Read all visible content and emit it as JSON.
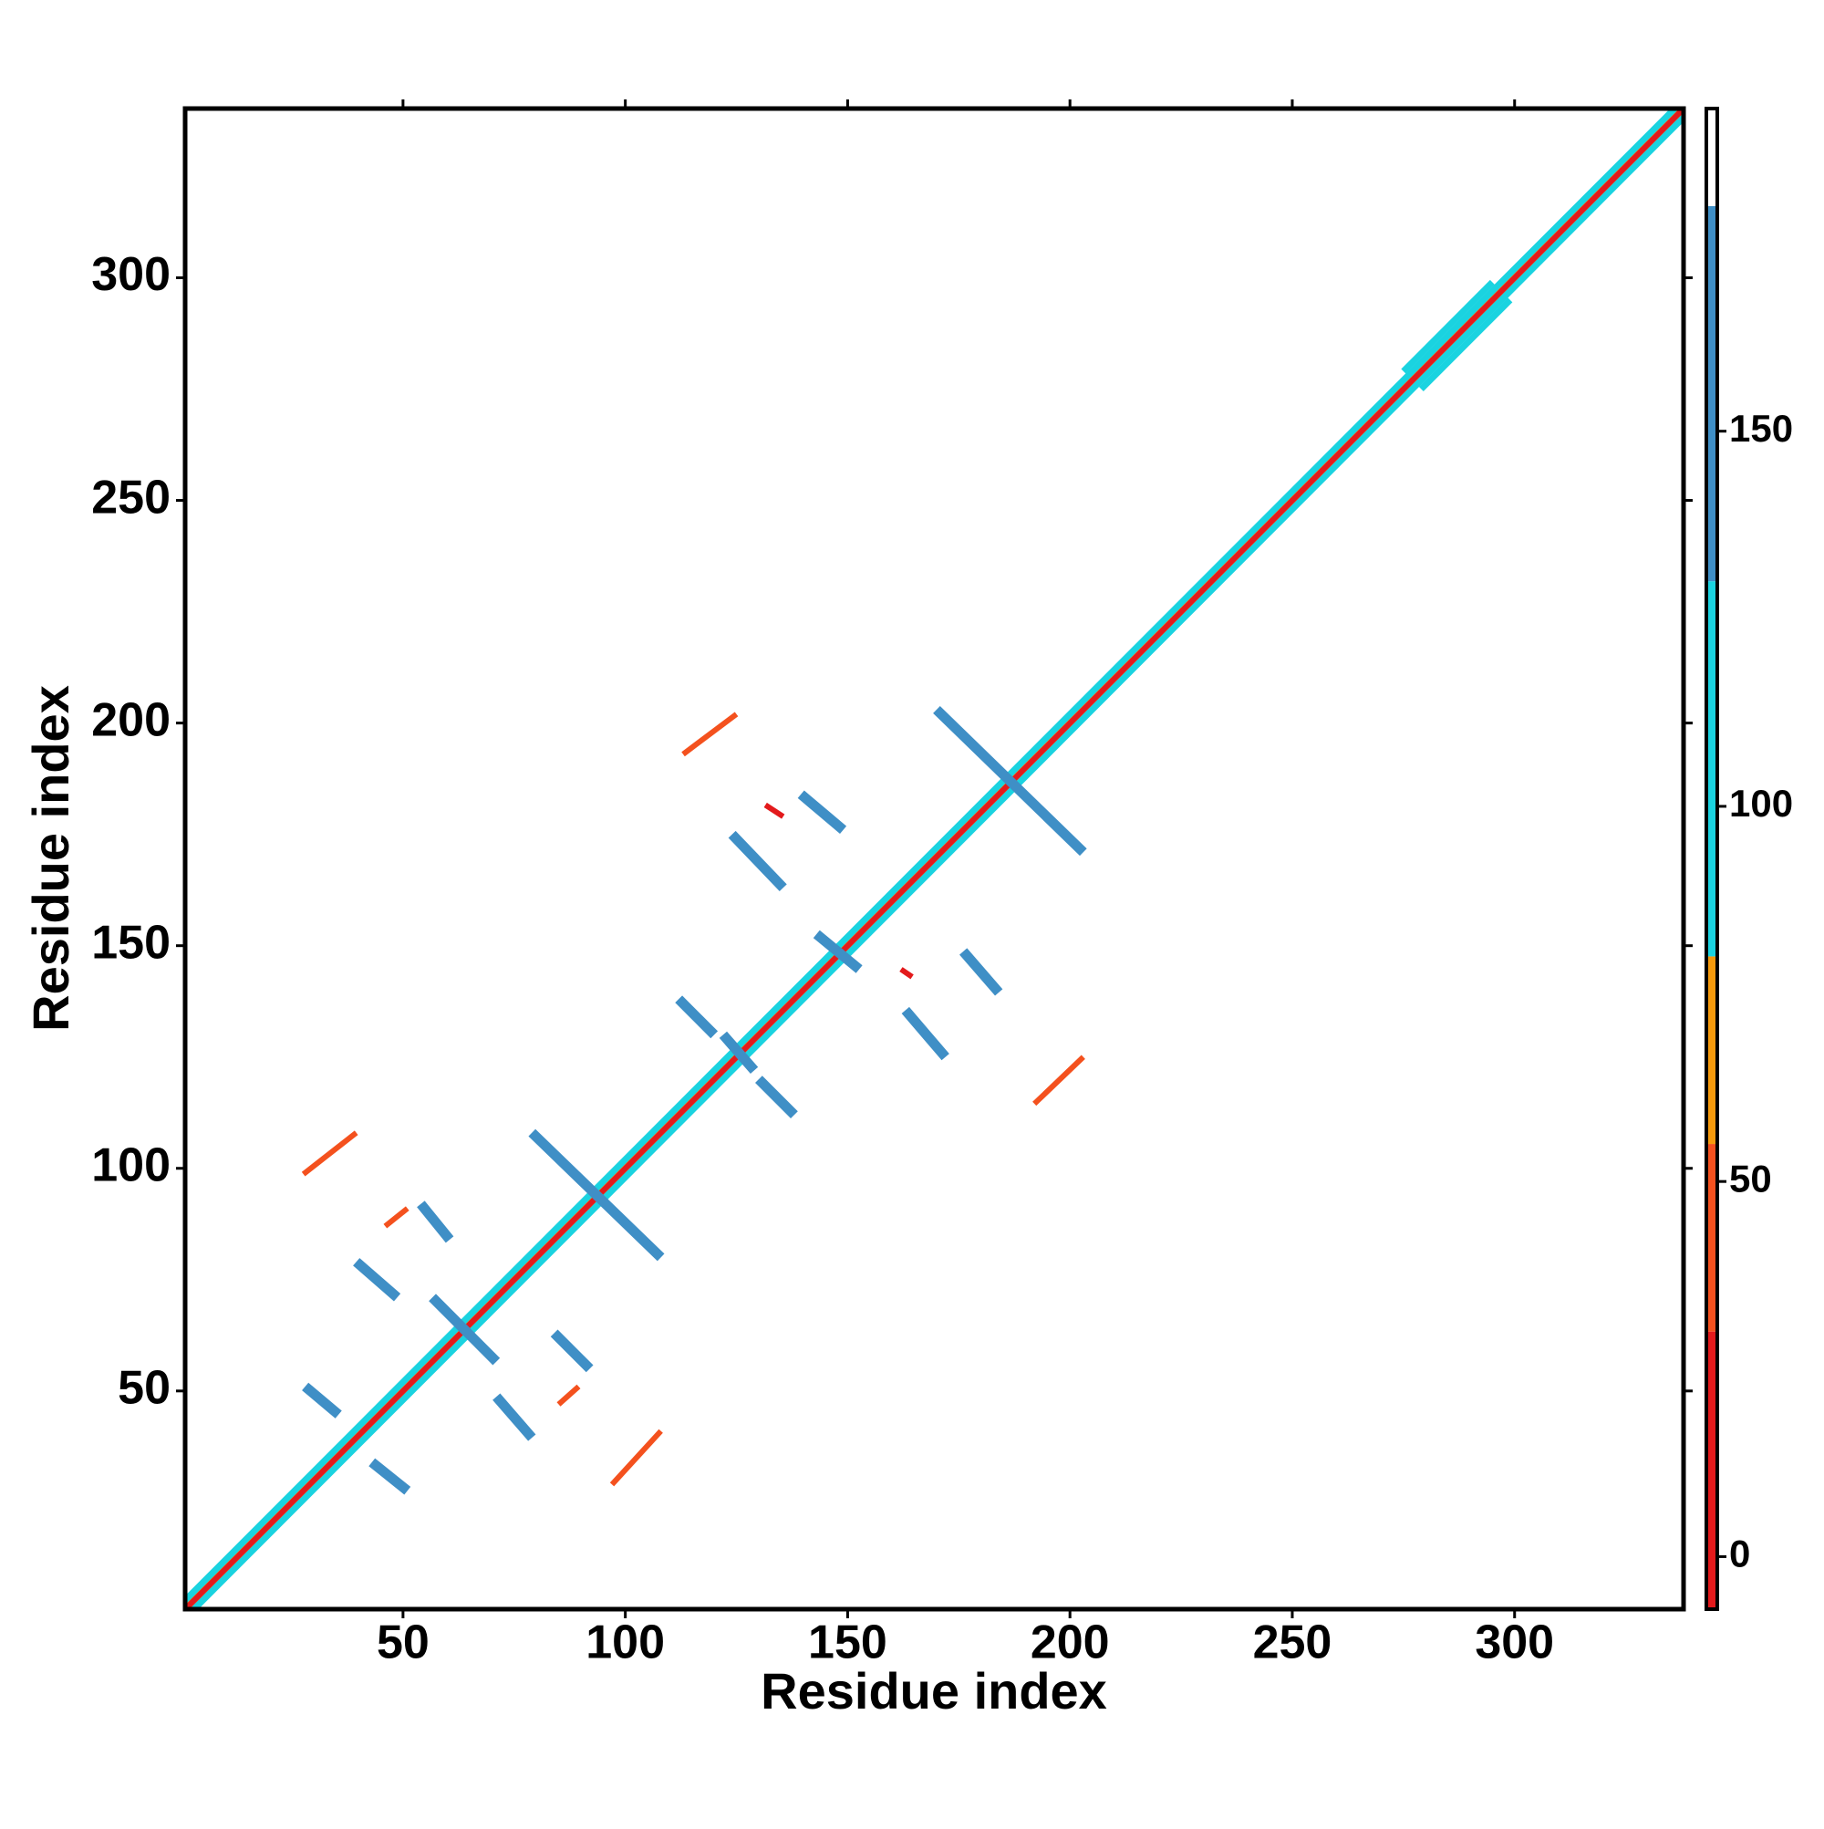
{
  "chart_data": {
    "type": "heatmap",
    "xlabel": "Residue index",
    "ylabel": "Residue index",
    "xlim": [
      1,
      338
    ],
    "ylim": [
      1,
      338
    ],
    "xticks": [
      50,
      100,
      150,
      200,
      250,
      300
    ],
    "yticks": [
      50,
      100,
      150,
      200,
      250,
      300
    ],
    "colorbar": {
      "lim": [
        -7,
        193
      ],
      "ticks": [
        0,
        50,
        100,
        150
      ],
      "bands": [
        {
          "from": -7,
          "to": 30,
          "color": "#e31a1c"
        },
        {
          "from": 30,
          "to": 55,
          "color": "#f4511e"
        },
        {
          "from": 55,
          "to": 80,
          "color": "#f59a0c"
        },
        {
          "from": 80,
          "to": 130,
          "color": "#1ad3e0"
        },
        {
          "from": 130,
          "to": 180,
          "color": "#3f8fc6"
        },
        {
          "from": 180,
          "to": 193,
          "color": "#ffffff"
        }
      ]
    },
    "contacts": [
      {
        "x": [
          2,
          338
        ],
        "y": [
          1,
          337
        ],
        "value": 40
      },
      {
        "x": [
          1,
          337
        ],
        "y": [
          2,
          338
        ],
        "value": 65
      },
      {
        "x": [
          3,
          338
        ],
        "y": [
          1,
          336
        ],
        "value": 100
      },
      {
        "x": [
          1,
          336
        ],
        "y": [
          3,
          338
        ],
        "value": 100
      },
      {
        "x": [
          1,
          338
        ],
        "y": [
          1,
          338
        ],
        "value": 10
      },
      {
        "x": [
          275,
          295
        ],
        "y": [
          279,
          299
        ],
        "value": 100
      },
      {
        "x": [
          279,
          299
        ],
        "y": [
          275,
          295
        ],
        "value": 100
      },
      {
        "x": [
          79,
          108
        ],
        "y": [
          108,
          80
        ],
        "value": 150
      },
      {
        "x": [
          170,
          203
        ],
        "y": [
          203,
          171
        ],
        "value": 150
      },
      {
        "x": [
          54,
          60.5
        ],
        "y": [
          92,
          84
        ],
        "value": 150
      },
      {
        "x": [
          39.5,
          48.7
        ],
        "y": [
          79,
          71
        ],
        "value": 150
      },
      {
        "x": [
          56.6,
          71
        ],
        "y": [
          71,
          56.6
        ],
        "value": 150
      },
      {
        "x": [
          84,
          92
        ],
        "y": [
          63,
          55
        ],
        "value": 150
      },
      {
        "x": [
          71,
          79
        ],
        "y": [
          48.7,
          39.5
        ],
        "value": 150
      },
      {
        "x": [
          28,
          35.5
        ],
        "y": [
          51,
          44.7
        ],
        "value": 150
      },
      {
        "x": [
          43,
          51
        ],
        "y": [
          34,
          27.6
        ],
        "value": 150
      },
      {
        "x": [
          112,
          120
        ],
        "y": [
          138,
          130
        ],
        "value": 150
      },
      {
        "x": [
          122,
          129
        ],
        "y": [
          130,
          122
        ],
        "value": 150
      },
      {
        "x": [
          130,
          138
        ],
        "y": [
          120,
          112
        ],
        "value": 150
      },
      {
        "x": [
          124,
          135.5
        ],
        "y": [
          175,
          163
        ],
        "value": 150
      },
      {
        "x": [
          139.5,
          149
        ],
        "y": [
          184,
          176
        ],
        "value": 150
      },
      {
        "x": [
          143,
          152.6
        ],
        "y": [
          152.6,
          144.7
        ],
        "value": 150
      },
      {
        "x": [
          176,
          184
        ],
        "y": [
          148.7,
          139.5
        ],
        "value": 150
      },
      {
        "x": [
          163,
          172
        ],
        "y": [
          135.5,
          125
        ],
        "value": 150
      },
      {
        "x": [
          27.6,
          39.5
        ],
        "y": [
          98.7,
          108
        ],
        "value": 40
      },
      {
        "x": [
          46,
          51
        ],
        "y": [
          87,
          91
        ],
        "value": 40
      },
      {
        "x": [
          85,
          89.5
        ],
        "y": [
          47,
          51
        ],
        "value": 40
      },
      {
        "x": [
          97,
          108
        ],
        "y": [
          29,
          41
        ],
        "value": 40
      },
      {
        "x": [
          113,
          125
        ],
        "y": [
          193,
          202
        ],
        "value": 40
      },
      {
        "x": [
          192,
          203
        ],
        "y": [
          114.5,
          125
        ],
        "value": 40
      },
      {
        "x": [
          131.5,
          135.5
        ],
        "y": [
          181.6,
          179
        ],
        "value": 20
      },
      {
        "x": [
          162,
          164.5
        ],
        "y": [
          144.7,
          143
        ],
        "value": 20
      }
    ]
  }
}
